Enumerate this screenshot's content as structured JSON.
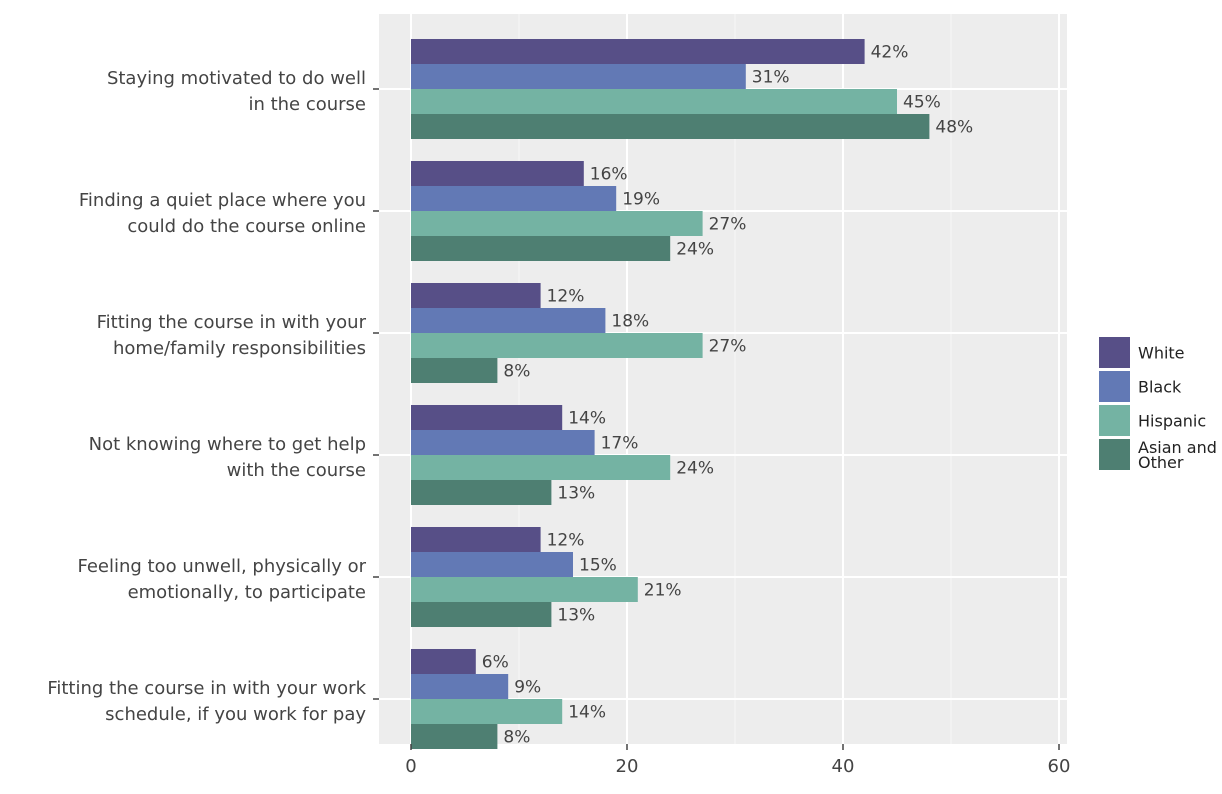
{
  "chart_data": {
    "type": "bar",
    "orientation": "horizontal",
    "categories": [
      [
        "Staying motivated to do well",
        "in the course"
      ],
      [
        "Finding a quiet place where you",
        "could do the course online"
      ],
      [
        "Fitting the course in with your",
        "home/family responsibilities"
      ],
      [
        "Not knowing where to get help",
        "with the course"
      ],
      [
        "Feeling too unwell, physically or",
        "emotionally, to participate"
      ],
      [
        "Fitting the course in with your work",
        "schedule, if you work for pay"
      ]
    ],
    "series": [
      {
        "name": "White",
        "color": "#574f87",
        "values": [
          42,
          16,
          12,
          14,
          12,
          6
        ]
      },
      {
        "name": "Black",
        "color": "#6279b5",
        "values": [
          31,
          19,
          18,
          17,
          15,
          9
        ]
      },
      {
        "name": "Hispanic",
        "color": "#74b3a3",
        "values": [
          45,
          27,
          27,
          24,
          21,
          14
        ]
      },
      {
        "name": "Asian and Other",
        "color": "#4e7f72",
        "values": [
          48,
          24,
          8,
          13,
          13,
          8
        ]
      }
    ],
    "value_suffix": "%",
    "xlim": [
      0,
      63
    ],
    "xticks": [
      0,
      20,
      40,
      60
    ],
    "grid": true,
    "legend_position": "right",
    "title": "",
    "xlabel": "",
    "ylabel": ""
  }
}
